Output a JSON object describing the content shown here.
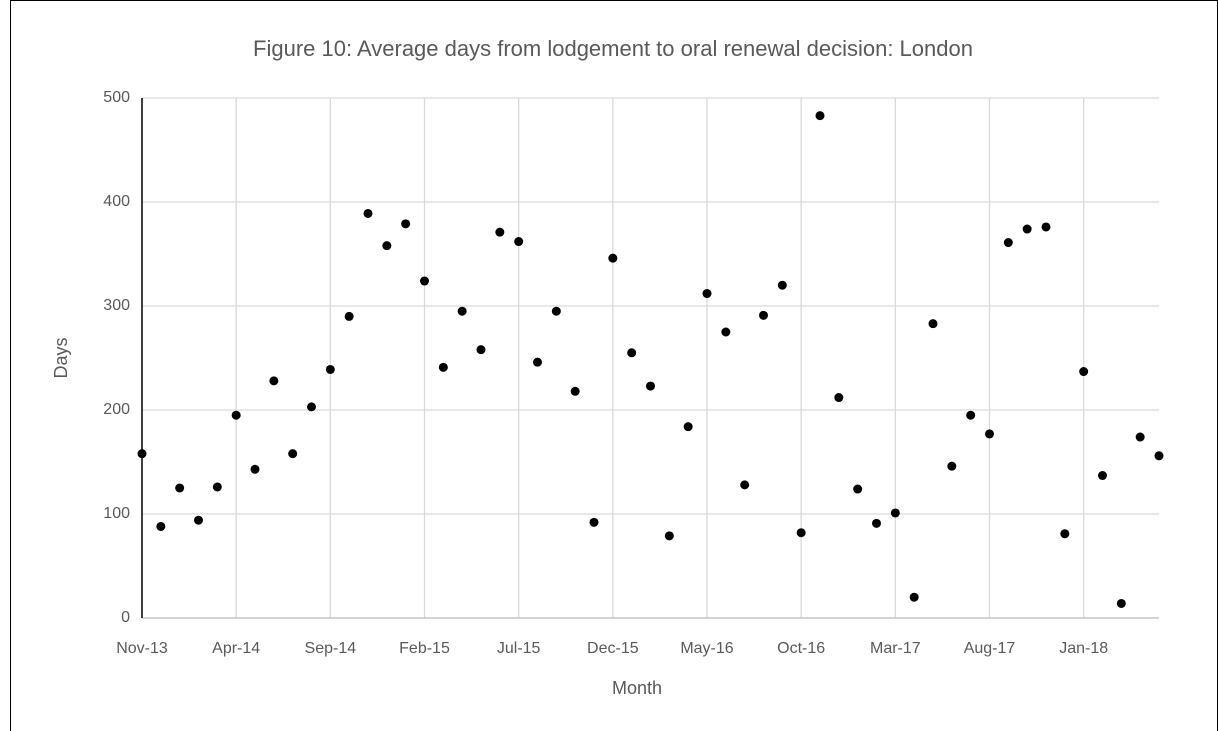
{
  "chart_data": {
    "type": "scatter",
    "title": "Figure 10: Average days from lodgement to oral renewal decision: London",
    "x_label": "Month",
    "y_label": "Days",
    "categories": [
      "Nov-13",
      null,
      null,
      null,
      null,
      "Apr-14",
      null,
      null,
      null,
      null,
      "Sep-14",
      null,
      null,
      null,
      null,
      "Feb-15",
      null,
      null,
      null,
      null,
      "Jul-15",
      null,
      null,
      null,
      null,
      "Dec-15",
      null,
      null,
      null,
      null,
      "May-16",
      null,
      null,
      null,
      null,
      "Oct-16",
      null,
      null,
      null,
      null,
      "Mar-17",
      null,
      null,
      null,
      null,
      "Aug-17",
      null,
      null,
      null,
      null,
      "Jan-18",
      null,
      null,
      null,
      null
    ],
    "values": [
      158,
      88,
      125,
      94,
      126,
      195,
      143,
      228,
      158,
      203,
      239,
      290,
      389,
      358,
      379,
      324,
      241,
      295,
      258,
      371,
      362,
      246,
      295,
      218,
      92,
      346,
      255,
      223,
      79,
      184,
      312,
      275,
      128,
      291,
      320,
      82,
      483,
      212,
      124,
      91,
      101,
      20,
      283,
      146,
      195,
      177,
      361,
      374,
      376,
      81,
      237,
      137,
      14,
      174,
      156
    ],
    "color": "#000000",
    "ylim": [
      0,
      500
    ],
    "yticks": [
      0,
      100,
      200,
      300,
      400,
      500
    ],
    "grid": true
  }
}
